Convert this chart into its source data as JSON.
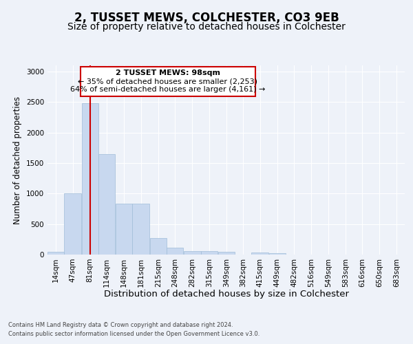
{
  "title1": "2, TUSSET MEWS, COLCHESTER, CO3 9EB",
  "title2": "Size of property relative to detached houses in Colchester",
  "xlabel": "Distribution of detached houses by size in Colchester",
  "ylabel": "Number of detached properties",
  "footer1": "Contains HM Land Registry data © Crown copyright and database right 2024.",
  "footer2": "Contains public sector information licensed under the Open Government Licence v3.0.",
  "annotation_title": "2 TUSSET MEWS: 98sqm",
  "annotation_line1": "← 35% of detached houses are smaller (2,253)",
  "annotation_line2": "64% of semi-detached houses are larger (4,161) →",
  "bar_bins": [
    14,
    47,
    81,
    114,
    148,
    181,
    215,
    248,
    282,
    315,
    349,
    382,
    415,
    449,
    482,
    516,
    549,
    583,
    616,
    650,
    683
  ],
  "bar_values": [
    50,
    1000,
    2480,
    1650,
    830,
    830,
    270,
    115,
    55,
    55,
    40,
    0,
    30,
    20,
    0,
    0,
    0,
    0,
    0,
    0,
    0
  ],
  "bar_color": "#c8d8ef",
  "bar_edgecolor": "#a0bcd8",
  "vline_color": "#cc0000",
  "vline_x": 98,
  "ylim": [
    0,
    3100
  ],
  "yticks": [
    0,
    500,
    1000,
    1500,
    2000,
    2500,
    3000
  ],
  "background_color": "#eef2f9",
  "plot_background": "#eef2f9",
  "grid_color": "#ffffff",
  "title1_fontsize": 12,
  "title2_fontsize": 10,
  "xlabel_fontsize": 9.5,
  "ylabel_fontsize": 8.5,
  "tick_fontsize": 7.5,
  "annotation_box_color": "#ffffff",
  "annotation_box_edgecolor": "#cc0000",
  "annotation_fontsize": 8.0,
  "bin_width": 33
}
